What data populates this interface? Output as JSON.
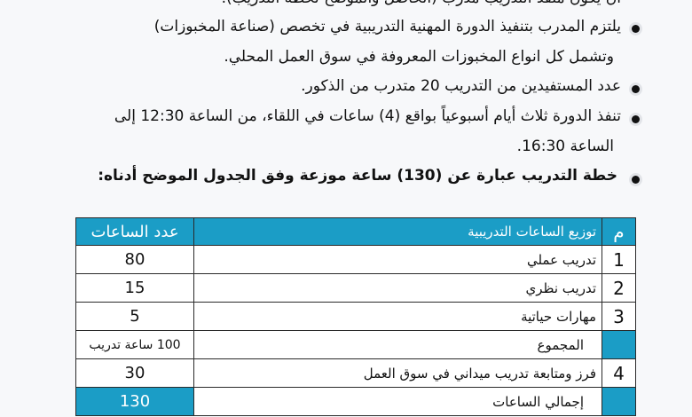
{
  "bullets": [
    {
      "text": "أن يكون منفذ التدريب مدرب (الحاصل والموضح لخطة التدريب)."
    },
    {
      "text": "يلتزم المدرب بتنفيذ الدورة المهنية التدريبية في تخصص (صناعة المخبوزات)",
      "cont": "وتشمل كل انواع المخبوزات المعروفة في سوق العمل المحلي."
    },
    {
      "text": "عدد المستفيدين من التدريب 20 متدرب من الذكور."
    },
    {
      "text": "تنفذ الدورة ثلاث أيام أسبوعياً بواقع (4) ساعات في اللقاء، من الساعة 12:30 إلى",
      "cont": "الساعة 16:30."
    },
    {
      "text": "خطة التدريب عبارة عن (130) ساعة موزعة وفق الجدول الموضح أدناه:"
    }
  ],
  "table": {
    "headers": [
      "م",
      "توزيع الساعات التدريبية",
      "عدد الساعات"
    ],
    "rows": [
      [
        "1",
        "تدريب عملي",
        "80"
      ],
      [
        "2",
        "تدريب نظري",
        "15"
      ],
      [
        "3",
        "مهارات حياتية",
        "5"
      ],
      [
        "",
        "المجموع",
        "100 ساعة تدريب"
      ],
      [
        "4",
        "فرز ومتابعة تدريب ميداني في سوق العمل",
        "30"
      ],
      [
        "",
        "إجمالي الساعات",
        "130"
      ]
    ]
  },
  "colors": {
    "accent": "#1b9dc6"
  }
}
